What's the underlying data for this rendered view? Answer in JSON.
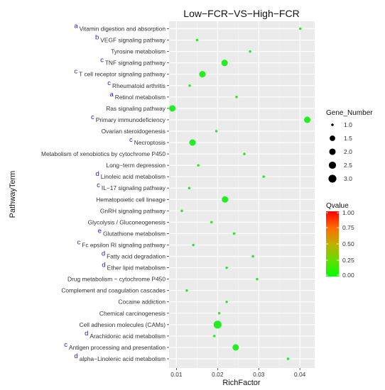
{
  "chart_data": {
    "type": "scatter",
    "title": "Low−FCR−VS−High−FCR",
    "xlabel": "RichFactor",
    "ylabel": "PathwayTerm",
    "xlim": [
      0.0082,
      0.0436
    ],
    "x_ticks": [
      "0.01",
      "0.02",
      "0.03",
      "0.04"
    ],
    "x_tick_values": [
      0.01,
      0.02,
      0.03,
      0.04
    ],
    "grid": true,
    "legend_position": "right",
    "size_legend": {
      "title": "Gene_Number",
      "labels": [
        "1.0",
        "1.5",
        "2.0",
        "2.5",
        "3.0"
      ],
      "values": [
        1.0,
        1.5,
        2.0,
        2.5,
        3.0
      ]
    },
    "color_legend": {
      "title": "Qvalue",
      "labels": [
        "1.00",
        "0.75",
        "0.50",
        "0.25",
        "0.00"
      ],
      "values": [
        1.0,
        0.75,
        0.5,
        0.25,
        0.0
      ]
    },
    "point_color": "#22ee22",
    "points": [
      {
        "term": "Vitamin digestion and absorption",
        "marker": "a",
        "x": 0.0401,
        "genes": 1
      },
      {
        "term": "VEGF signaling pathway",
        "marker": "b",
        "x": 0.015,
        "genes": 1
      },
      {
        "term": "Tyrosine metabolism",
        "marker": "",
        "x": 0.0279,
        "genes": 1
      },
      {
        "term": "TNF signaling pathway",
        "marker": "c",
        "x": 0.0217,
        "genes": 2
      },
      {
        "term": "T cell receptor signaling pathway",
        "marker": "c",
        "x": 0.0163,
        "genes": 2
      },
      {
        "term": "Rheumatoid arthritis",
        "marker": "c",
        "x": 0.0132,
        "genes": 1
      },
      {
        "term": "Retinol metabolism",
        "marker": "a",
        "x": 0.0246,
        "genes": 1
      },
      {
        "term": "Ras signaling pathway",
        "marker": "",
        "x": 0.009,
        "genes": 2
      },
      {
        "term": "Primary immunodeficiency",
        "marker": "c",
        "x": 0.0418,
        "genes": 2
      },
      {
        "term": "Ovarian steroidogenesis",
        "marker": "",
        "x": 0.0197,
        "genes": 1
      },
      {
        "term": "Necroptosis",
        "marker": "c",
        "x": 0.0139,
        "genes": 2
      },
      {
        "term": "Metabolism of xenobiotics by cytochrome P450",
        "marker": "",
        "x": 0.0265,
        "genes": 1
      },
      {
        "term": "Long−term depression",
        "marker": "",
        "x": 0.0153,
        "genes": 1
      },
      {
        "term": "Linoleic acid metabolism",
        "marker": "d",
        "x": 0.0312,
        "genes": 1
      },
      {
        "term": "IL−17 signaling pathway",
        "marker": "c",
        "x": 0.0131,
        "genes": 1
      },
      {
        "term": "Hematopoietic cell lineage",
        "marker": "",
        "x": 0.0218,
        "genes": 2
      },
      {
        "term": "GnRH signaling pathway",
        "marker": "",
        "x": 0.0113,
        "genes": 1
      },
      {
        "term": "Glycolysis / Gluconeogenesis",
        "marker": "",
        "x": 0.0185,
        "genes": 1
      },
      {
        "term": "Glutathione metabolism",
        "marker": "e",
        "x": 0.024,
        "genes": 1
      },
      {
        "term": "Fc epsilon RI signaling pathway",
        "marker": "c",
        "x": 0.0141,
        "genes": 1
      },
      {
        "term": "Fatty acid degradation",
        "marker": "d",
        "x": 0.0286,
        "genes": 1
      },
      {
        "term": "Ether lipid metabolism",
        "marker": "d",
        "x": 0.0222,
        "genes": 1
      },
      {
        "term": "Drug metabolism − cytochrome P450",
        "marker": "",
        "x": 0.0296,
        "genes": 1
      },
      {
        "term": "Complement and coagulation cascades",
        "marker": "",
        "x": 0.0125,
        "genes": 1
      },
      {
        "term": "Cocaine addiction",
        "marker": "",
        "x": 0.0222,
        "genes": 1
      },
      {
        "term": "Chemical carcinogenesis",
        "marker": "",
        "x": 0.0204,
        "genes": 1
      },
      {
        "term": "Cell adhesion molecules (CAMs)",
        "marker": "",
        "x": 0.02,
        "genes": 3
      },
      {
        "term": "Arachidonic acid metabolism",
        "marker": "d",
        "x": 0.0192,
        "genes": 1
      },
      {
        "term": "Antigen processing and presentation",
        "marker": "c",
        "x": 0.0244,
        "genes": 2
      },
      {
        "term": "alpha−Linolenic acid metabolism",
        "marker": "d",
        "x": 0.0371,
        "genes": 1
      }
    ]
  }
}
